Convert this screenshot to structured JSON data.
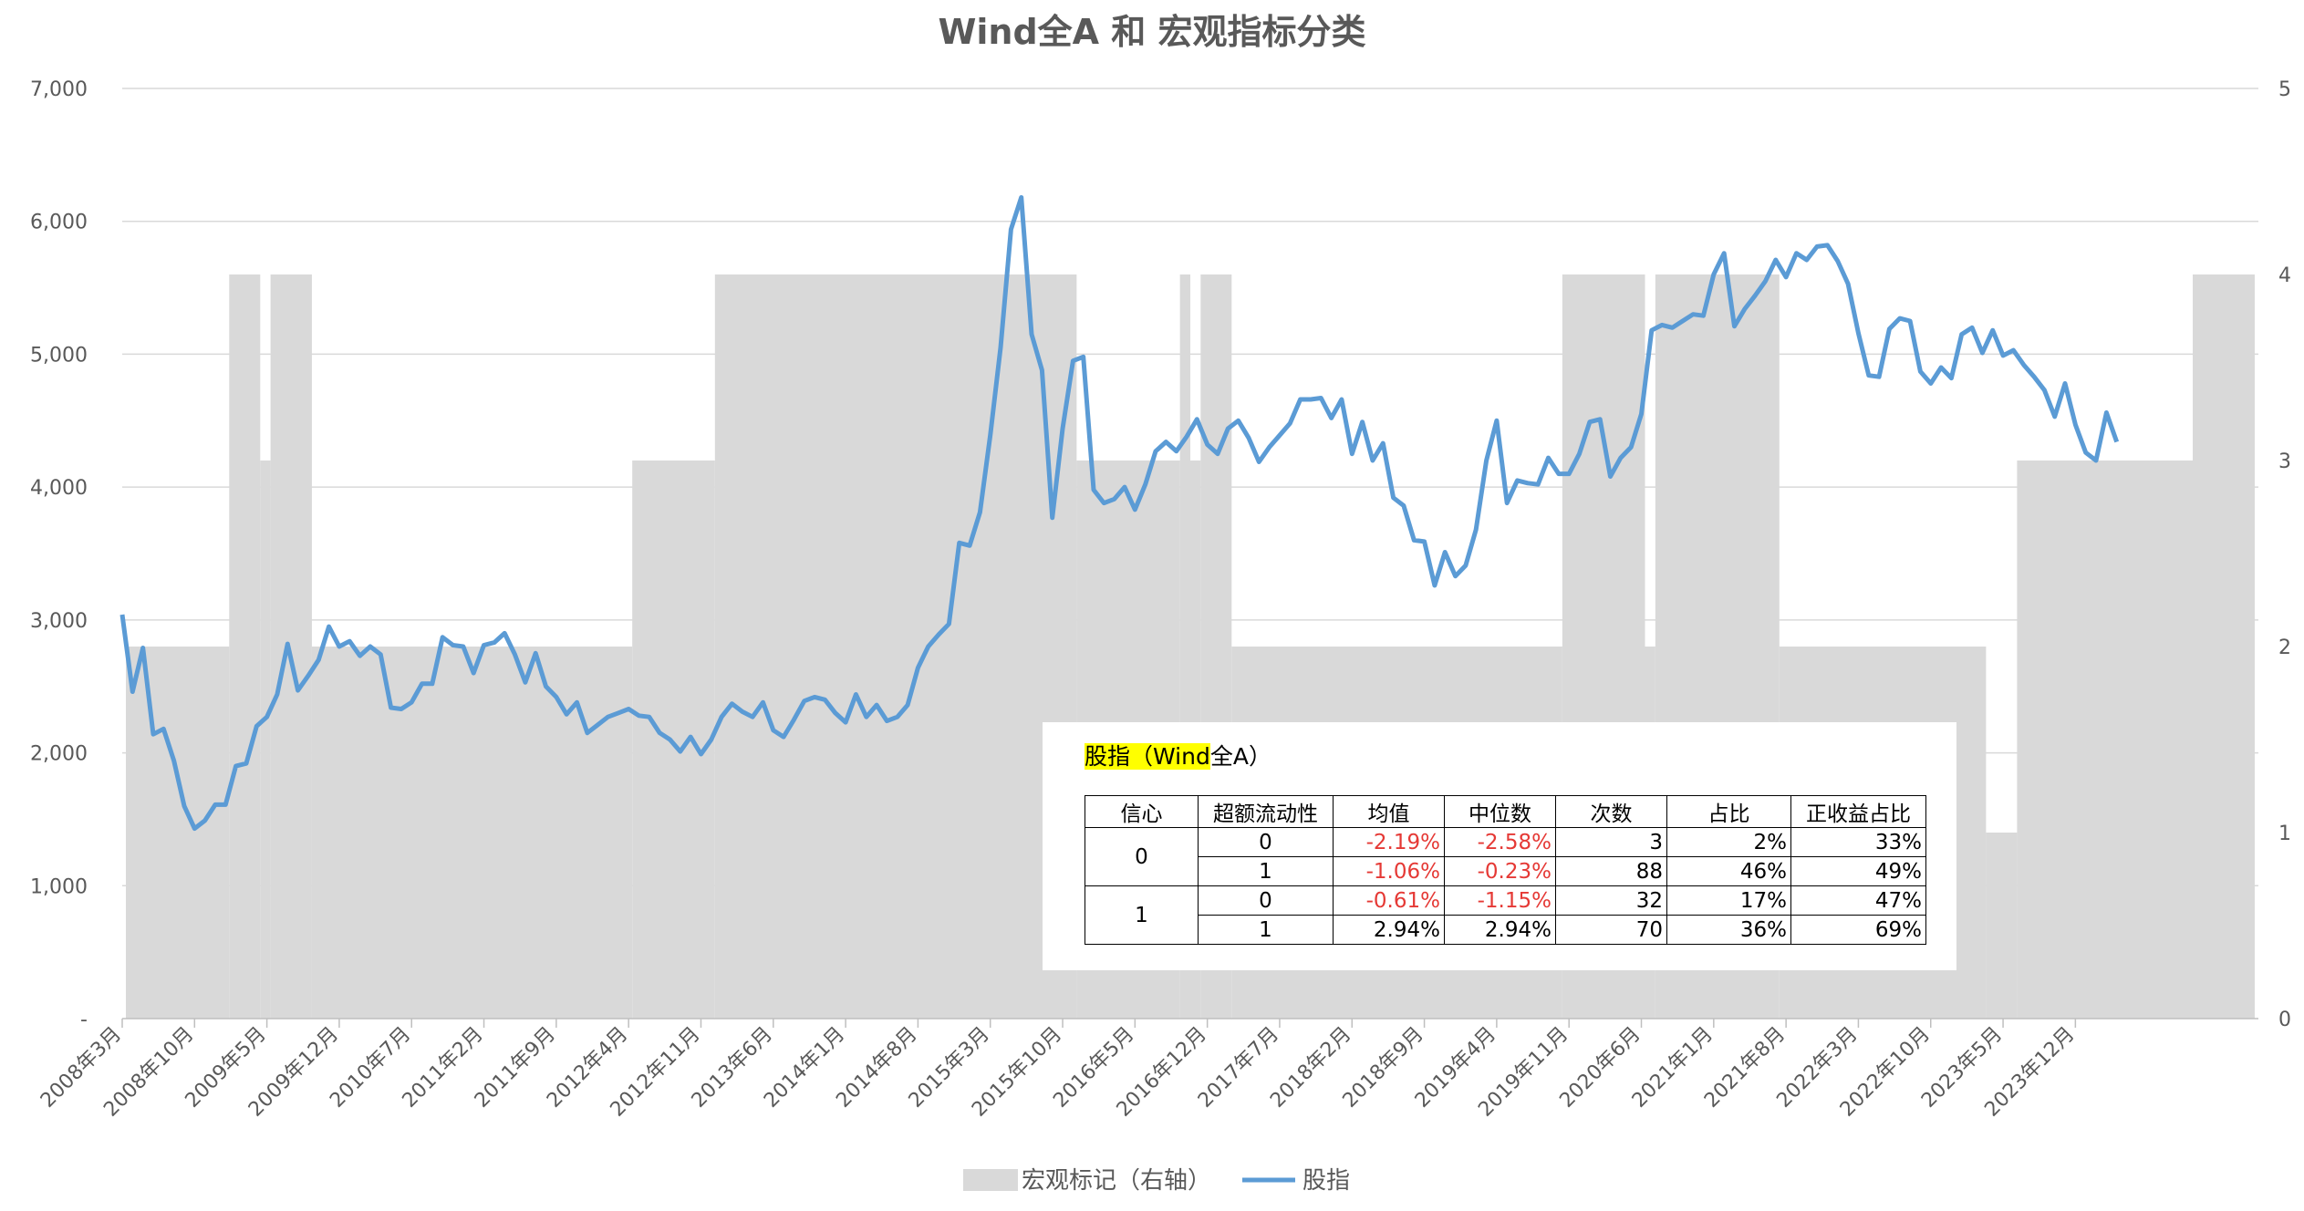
{
  "chart_data": {
    "type": "line",
    "title": "Wind全A 和 宏观指标分类",
    "y_left": {
      "ticks": [
        "-",
        "1,000",
        "2,000",
        "3,000",
        "4,000",
        "5,000",
        "6,000",
        "7,000"
      ],
      "range": [
        0,
        7000
      ]
    },
    "y_right": {
      "ticks": [
        "0",
        "1",
        "2",
        "3",
        "4",
        "5"
      ],
      "range": [
        0,
        5
      ]
    },
    "x_ticks": [
      "2008年3月",
      "2008年10月",
      "2009年5月",
      "2009年12月",
      "2010年7月",
      "2011年2月",
      "2011年9月",
      "2012年4月",
      "2012年11月",
      "2013年6月",
      "2014年1月",
      "2014年8月",
      "2015年3月",
      "2015年10月",
      "2016年5月",
      "2016年12月",
      "2017年7月",
      "2018年2月",
      "2018年9月",
      "2019年4月",
      "2019年11月",
      "2020年6月",
      "2021年1月",
      "2021年8月",
      "2022年3月",
      "2022年10月",
      "2023年5月",
      "2023年12月"
    ],
    "legend": {
      "position": "bottom",
      "items": [
        "宏观标记（右轴）",
        "股指"
      ]
    },
    "series": [
      {
        "name": "宏观标记（右轴）",
        "axis": "right",
        "type": "area",
        "color": "#d9d9d9",
        "segments": [
          {
            "start": 0,
            "end": 10,
            "value": 2
          },
          {
            "start": 10,
            "end": 13,
            "value": 4
          },
          {
            "start": 13,
            "end": 14,
            "value": 3
          },
          {
            "start": 14,
            "end": 18,
            "value": 4
          },
          {
            "start": 18,
            "end": 49,
            "value": 2
          },
          {
            "start": 49,
            "end": 57,
            "value": 3
          },
          {
            "start": 57,
            "end": 92,
            "value": 4
          },
          {
            "start": 92,
            "end": 102,
            "value": 3
          },
          {
            "start": 102,
            "end": 103,
            "value": 4
          },
          {
            "start": 103,
            "end": 104,
            "value": 3
          },
          {
            "start": 104,
            "end": 107,
            "value": 4
          },
          {
            "start": 107,
            "end": 139,
            "value": 2
          },
          {
            "start": 139,
            "end": 147,
            "value": 4
          },
          {
            "start": 147,
            "end": 148,
            "value": 2
          },
          {
            "start": 148,
            "end": 160,
            "value": 4
          },
          {
            "start": 160,
            "end": 180,
            "value": 2
          },
          {
            "start": 180,
            "end": 183,
            "value": 1
          },
          {
            "start": 183,
            "end": 200,
            "value": 3
          },
          {
            "start": 200,
            "end": 206,
            "value": 4
          }
        ]
      },
      {
        "name": "股指",
        "axis": "left",
        "type": "line",
        "color": "#5b9bd5",
        "values": [
          3040,
          2460,
          2790,
          2140,
          2180,
          1940,
          1600,
          1430,
          1490,
          1610,
          1610,
          1900,
          1920,
          2200,
          2270,
          2440,
          2820,
          2470,
          2580,
          2700,
          2950,
          2800,
          2840,
          2730,
          2800,
          2740,
          2340,
          2330,
          2380,
          2520,
          2520,
          2870,
          2810,
          2800,
          2600,
          2810,
          2830,
          2900,
          2740,
          2530,
          2750,
          2500,
          2420,
          2290,
          2380,
          2150,
          2210,
          2270,
          2300,
          2330,
          2280,
          2270,
          2150,
          2100,
          2010,
          2120,
          1990,
          2100,
          2270,
          2370,
          2310,
          2270,
          2380,
          2170,
          2120,
          2250,
          2390,
          2420,
          2400,
          2300,
          2230,
          2440,
          2270,
          2360,
          2240,
          2270,
          2360,
          2640,
          2800,
          2890,
          2970,
          3580,
          3560,
          3810,
          4390,
          5050,
          5940,
          6180,
          5150,
          4880,
          3770,
          4440,
          4950,
          4980,
          3980,
          3880,
          3910,
          4000,
          3830,
          4020,
          4270,
          4340,
          4270,
          4380,
          4510,
          4320,
          4250,
          4440,
          4500,
          4370,
          4190,
          4300,
          4390,
          4480,
          4660,
          4660,
          4670,
          4520,
          4660,
          4250,
          4490,
          4200,
          4330,
          3920,
          3860,
          3600,
          3590,
          3260,
          3510,
          3330,
          3410,
          3680,
          4200,
          4500,
          3880,
          4050,
          4030,
          4020,
          4220,
          4100,
          4100,
          4250,
          4490,
          4510,
          4080,
          4220,
          4300,
          4550,
          5180,
          5220,
          5200,
          5250,
          5300,
          5290,
          5600,
          5760,
          5210,
          5340,
          5440,
          5550,
          5710,
          5580,
          5760,
          5710,
          5810,
          5820,
          5700,
          5530,
          5160,
          4840,
          4830,
          5190,
          5270,
          5250,
          4870,
          4780,
          4900,
          4820,
          5150,
          5200,
          5010,
          5180,
          4990,
          5030,
          4920,
          4830,
          4730,
          4530,
          4780,
          4470,
          4260,
          4200,
          4560,
          4340
        ]
      }
    ]
  },
  "stats_table": {
    "title_highlight": "股指（Wind",
    "title_rest": "全A）",
    "headers": [
      "信心",
      "超额流动性",
      "均值",
      "中位数",
      "次数",
      "占比",
      "正收益占比"
    ],
    "groups": [
      {
        "confidence": "0",
        "rows": [
          {
            "liquidity": "0",
            "mean": "-2.19%",
            "median": "-2.58%",
            "count": "3",
            "share": "2%",
            "positive": "33%"
          },
          {
            "liquidity": "1",
            "mean": "-1.06%",
            "median": "-0.23%",
            "count": "88",
            "share": "46%",
            "positive": "49%"
          }
        ]
      },
      {
        "confidence": "1",
        "rows": [
          {
            "liquidity": "0",
            "mean": "-0.61%",
            "median": "-1.15%",
            "count": "32",
            "share": "17%",
            "positive": "47%"
          },
          {
            "liquidity": "1",
            "mean": "2.94%",
            "median": "2.94%",
            "count": "70",
            "share": "36%",
            "positive": "69%"
          }
        ]
      }
    ]
  }
}
